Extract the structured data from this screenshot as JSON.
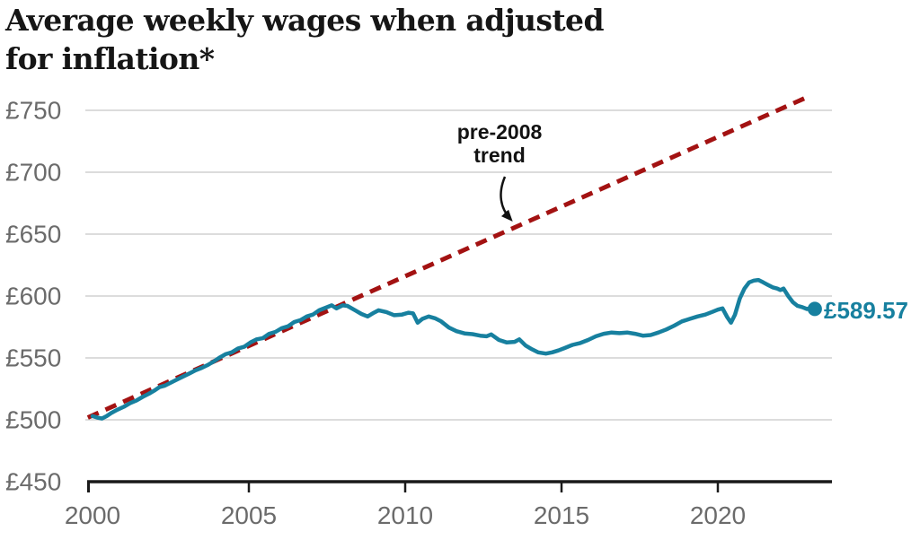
{
  "title": {
    "line1": "Average weekly wages when adjusted",
    "line2": "for inflation*"
  },
  "chart_data": {
    "type": "line",
    "title": "Average weekly wages when adjusted for inflation*",
    "x_axis": {
      "ticks": [
        2000,
        2005,
        2010,
        2015,
        2020
      ],
      "min": 2000,
      "max": 2023.6
    },
    "y_axis": {
      "ticks": [
        450,
        500,
        550,
        600,
        650,
        700,
        750
      ],
      "tick_prefix": "£",
      "min": 450,
      "max": 770,
      "gridlines": true
    },
    "annotation": {
      "line1": "pre-2008",
      "line2": "trend",
      "target": "trend-line"
    },
    "end_point": {
      "year": 2023.1,
      "value": 589.57,
      "label": "£589.57"
    },
    "series": [
      {
        "name": "average-weekly-wages",
        "type": "line",
        "color": "#17809f",
        "points": [
          [
            2000.0,
            503.0
          ],
          [
            2000.15,
            501.8
          ],
          [
            2000.3,
            501.0
          ],
          [
            2000.45,
            503.0
          ],
          [
            2000.6,
            505.5
          ],
          [
            2000.8,
            508.2
          ],
          [
            2001.0,
            510.5
          ],
          [
            2001.2,
            513.5
          ],
          [
            2001.4,
            515.5
          ],
          [
            2001.6,
            518.5
          ],
          [
            2001.8,
            521.0
          ],
          [
            2002.0,
            524.0
          ],
          [
            2002.15,
            526.5
          ],
          [
            2002.3,
            527.5
          ],
          [
            2002.5,
            530.0
          ],
          [
            2002.7,
            532.5
          ],
          [
            2002.9,
            535.0
          ],
          [
            2003.1,
            537.5
          ],
          [
            2003.3,
            540.0
          ],
          [
            2003.5,
            542.0
          ],
          [
            2003.7,
            544.5
          ],
          [
            2003.9,
            547.5
          ],
          [
            2004.05,
            550.0
          ],
          [
            2004.25,
            553.0
          ],
          [
            2004.45,
            554.5
          ],
          [
            2004.65,
            557.5
          ],
          [
            2004.85,
            559.0
          ],
          [
            2005.05,
            562.5
          ],
          [
            2005.25,
            565.0
          ],
          [
            2005.45,
            566.0
          ],
          [
            2005.65,
            569.5
          ],
          [
            2005.85,
            571.0
          ],
          [
            2006.05,
            574.0
          ],
          [
            2006.25,
            575.5
          ],
          [
            2006.45,
            579.0
          ],
          [
            2006.65,
            580.5
          ],
          [
            2006.85,
            583.5
          ],
          [
            2007.05,
            585.0
          ],
          [
            2007.25,
            588.5
          ],
          [
            2007.45,
            590.5
          ],
          [
            2007.65,
            592.5
          ],
          [
            2007.8,
            590.0
          ],
          [
            2008.0,
            592.5
          ],
          [
            2008.15,
            592.0
          ],
          [
            2008.4,
            588.5
          ],
          [
            2008.6,
            585.5
          ],
          [
            2008.8,
            583.5
          ],
          [
            2009.0,
            586.5
          ],
          [
            2009.15,
            588.5
          ],
          [
            2009.4,
            587.0
          ],
          [
            2009.65,
            584.5
          ],
          [
            2009.9,
            585.0
          ],
          [
            2010.1,
            586.5
          ],
          [
            2010.25,
            586.0
          ],
          [
            2010.4,
            578.5
          ],
          [
            2010.55,
            581.5
          ],
          [
            2010.75,
            583.5
          ],
          [
            2010.95,
            582.0
          ],
          [
            2011.15,
            579.5
          ],
          [
            2011.4,
            574.5
          ],
          [
            2011.65,
            571.5
          ],
          [
            2011.9,
            569.8
          ],
          [
            2012.15,
            569.2
          ],
          [
            2012.4,
            568.0
          ],
          [
            2012.6,
            567.5
          ],
          [
            2012.75,
            569.0
          ],
          [
            2013.0,
            564.5
          ],
          [
            2013.25,
            562.5
          ],
          [
            2013.5,
            563.0
          ],
          [
            2013.65,
            565.0
          ],
          [
            2013.85,
            560.0
          ],
          [
            2014.05,
            557.0
          ],
          [
            2014.25,
            554.5
          ],
          [
            2014.5,
            553.5
          ],
          [
            2014.7,
            554.5
          ],
          [
            2014.9,
            556.0
          ],
          [
            2015.1,
            558.0
          ],
          [
            2015.35,
            560.5
          ],
          [
            2015.6,
            562.0
          ],
          [
            2015.85,
            564.5
          ],
          [
            2016.1,
            567.5
          ],
          [
            2016.35,
            569.5
          ],
          [
            2016.6,
            570.5
          ],
          [
            2016.85,
            570.0
          ],
          [
            2017.1,
            570.5
          ],
          [
            2017.35,
            569.5
          ],
          [
            2017.6,
            568.0
          ],
          [
            2017.85,
            568.5
          ],
          [
            2018.1,
            570.5
          ],
          [
            2018.35,
            573.0
          ],
          [
            2018.6,
            576.0
          ],
          [
            2018.85,
            579.5
          ],
          [
            2019.1,
            581.5
          ],
          [
            2019.35,
            583.5
          ],
          [
            2019.6,
            585.0
          ],
          [
            2019.85,
            587.5
          ],
          [
            2020.0,
            589.0
          ],
          [
            2020.15,
            590.0
          ],
          [
            2020.3,
            583.0
          ],
          [
            2020.42,
            578.5
          ],
          [
            2020.55,
            585.0
          ],
          [
            2020.7,
            598.0
          ],
          [
            2020.85,
            606.0
          ],
          [
            2021.0,
            611.0
          ],
          [
            2021.15,
            612.5
          ],
          [
            2021.3,
            613.0
          ],
          [
            2021.45,
            611.0
          ],
          [
            2021.6,
            609.0
          ],
          [
            2021.75,
            607.0
          ],
          [
            2021.9,
            606.0
          ],
          [
            2022.0,
            604.8
          ],
          [
            2022.1,
            606.0
          ],
          [
            2022.25,
            600.0
          ],
          [
            2022.4,
            595.0
          ],
          [
            2022.55,
            592.0
          ],
          [
            2022.7,
            591.0
          ],
          [
            2022.85,
            589.5
          ],
          [
            2023.0,
            590.3
          ],
          [
            2023.1,
            589.57
          ]
        ]
      },
      {
        "name": "pre-2008-trend",
        "type": "dashed-line",
        "color": "#a31212",
        "points": [
          [
            1999.85,
            501.8
          ],
          [
            2022.8,
            760.0
          ]
        ]
      }
    ],
    "colors": {
      "wage_line": "#17809f",
      "trend_line": "#a31212",
      "grid": "#d0d0d0",
      "axis": "#1a1a1a",
      "axis_label": "#6b6b6b",
      "annotation": "#121212",
      "title": "#161616"
    }
  }
}
